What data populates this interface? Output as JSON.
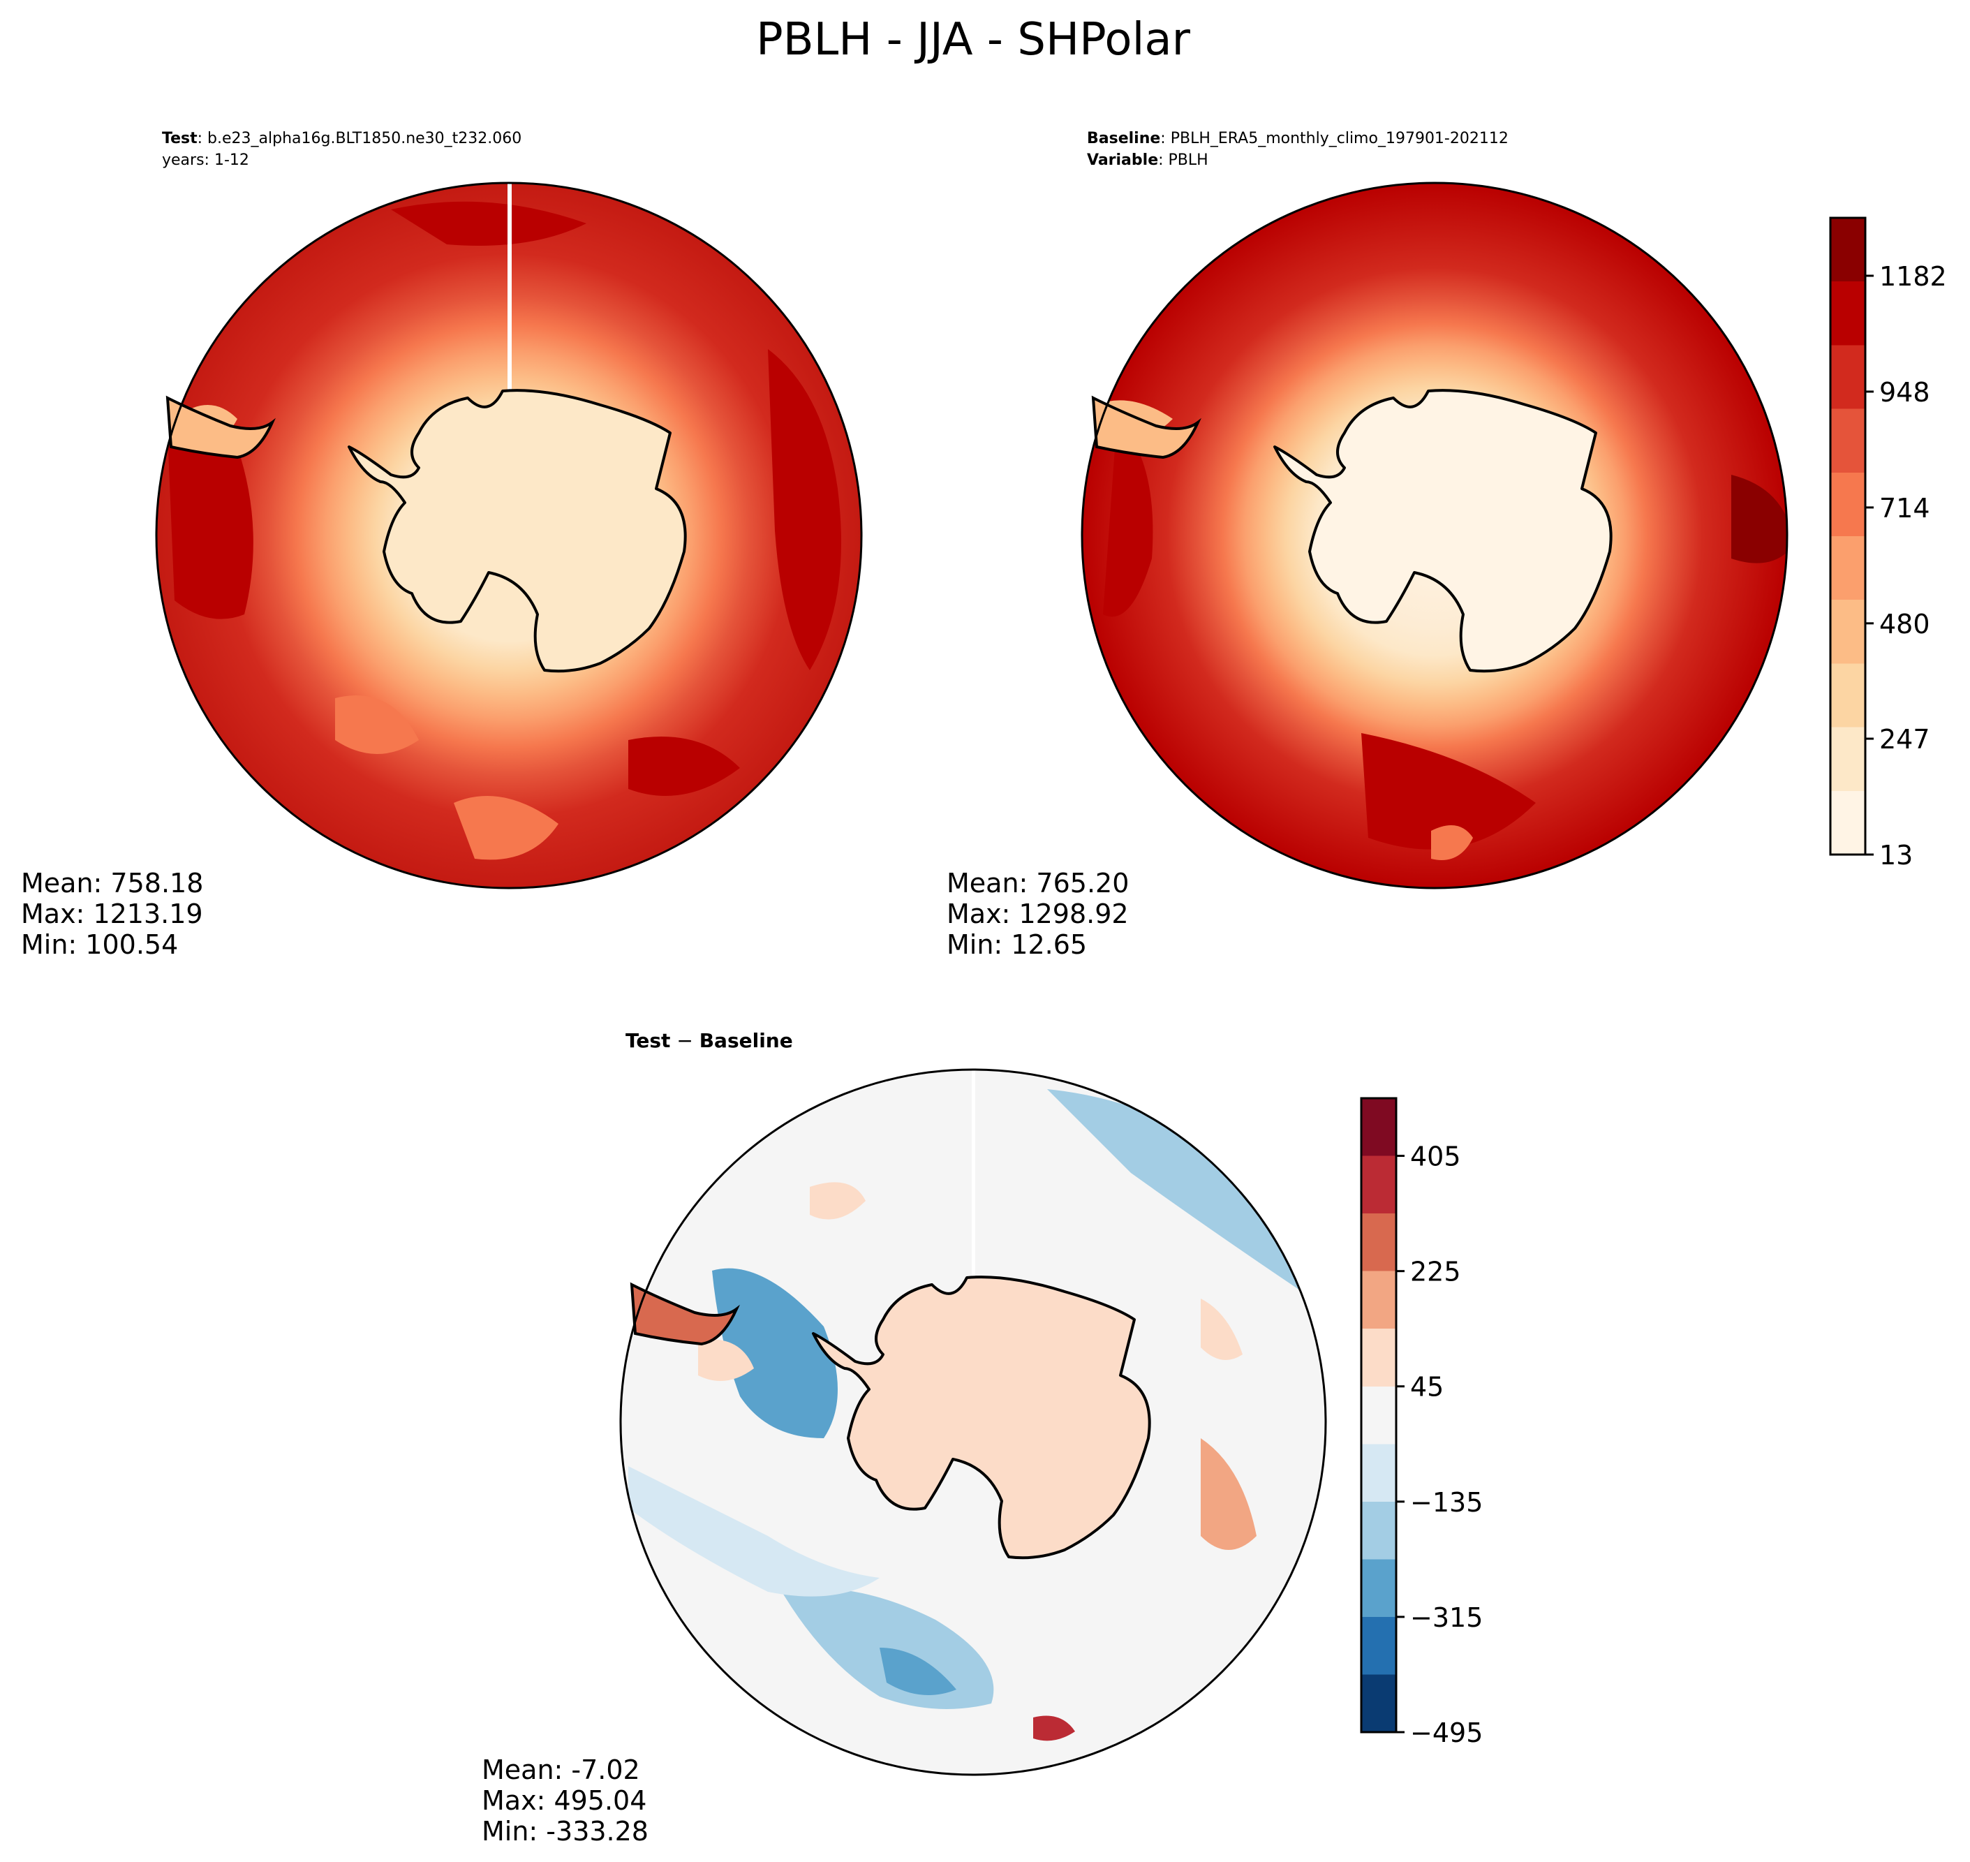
{
  "figure_title": "PBLH - JJA - SHPolar",
  "palette": {
    "RdBu_r_diff": [
      "#0a3b72",
      "#2470b0",
      "#5aa2cc",
      "#a3cde4",
      "#d6e8f3",
      "#f5f5f5",
      "#fcdcc8",
      "#f2a683",
      "#d8694f",
      "#bb2b34",
      "#7f0a22"
    ],
    "OrRd_levels": [
      "#fff4e5",
      "#fde8c8",
      "#fcd5a3",
      "#fcbc86",
      "#fb9f6d",
      "#f6784e",
      "#e5543a",
      "#d22a1e",
      "#b90000",
      "#8a0000"
    ],
    "coast": "#000000"
  },
  "chart_data": [
    {
      "type": "map",
      "name": "test",
      "title_label": "Test",
      "title_value": "b.e23_alpha16g.BLT1850.ne30_t232.060",
      "subtitle": "years: 1-12",
      "projection": "south-polar-stereographic",
      "stats": {
        "mean_label": "Mean: 758.18",
        "max_label": "Max: 1213.19",
        "min_label": "Min: 100.54",
        "mean": 758.18,
        "max": 1213.19,
        "min": 100.54
      }
    },
    {
      "type": "map",
      "name": "baseline",
      "title_label": "Baseline",
      "title_value": "PBLH_ERA5_monthly_climo_197901-202112",
      "var_label": "Variable",
      "var_value": "PBLH",
      "projection": "south-polar-stereographic",
      "stats": {
        "mean_label": "Mean: 765.20",
        "max_label": "Max: 1298.92",
        "min_label": "Min: 12.65",
        "mean": 765.2,
        "max": 1298.92,
        "min": 12.65
      },
      "colorbar": {
        "ticks": [
          "13",
          "247",
          "480",
          "714",
          "948",
          "1182"
        ],
        "tick_values": [
          13,
          247,
          480,
          714,
          948,
          1182
        ],
        "range": [
          13,
          1299
        ]
      }
    },
    {
      "type": "map",
      "name": "difference",
      "title_label": "Test",
      "title_sep": "−",
      "title_value": "Baseline",
      "projection": "south-polar-stereographic",
      "stats": {
        "mean_label": "Mean: -7.02",
        "max_label": "Max: 495.04",
        "min_label": "Min: -333.28",
        "mean": -7.02,
        "max": 495.04,
        "min": -333.28
      },
      "colorbar": {
        "ticks": [
          "−495",
          "−315",
          "−135",
          "45",
          "225",
          "405"
        ],
        "tick_values": [
          -495,
          -315,
          -135,
          45,
          225,
          405
        ],
        "range": [
          -495,
          495
        ]
      }
    }
  ]
}
